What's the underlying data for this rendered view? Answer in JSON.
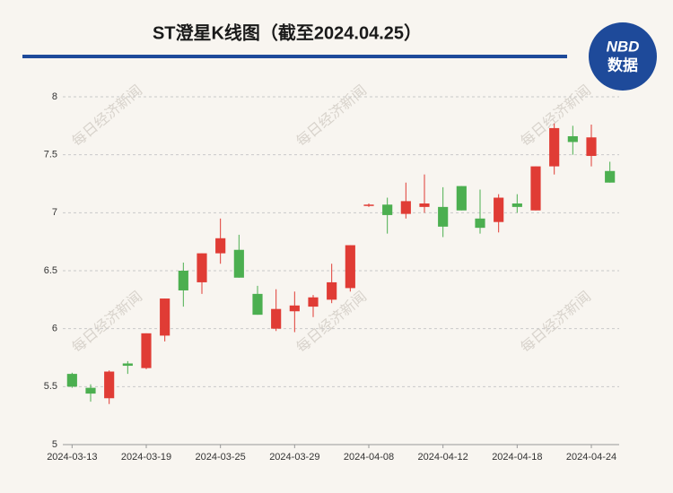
{
  "chart_data": {
    "type": "candlestick",
    "title": "ST澄星K线图（截至2024.04.25）",
    "logo": {
      "top": "NBD",
      "bottom": "数据"
    },
    "watermark": "每日经济新闻",
    "categories": [
      "2024-03-13",
      null,
      null,
      null,
      "2024-03-19",
      null,
      null,
      null,
      "2024-03-25",
      null,
      null,
      null,
      "2024-03-29",
      null,
      null,
      null,
      "2024-04-08",
      null,
      null,
      null,
      "2024-04-12",
      null,
      null,
      null,
      "2024-04-18",
      null,
      null,
      null,
      "2024-04-24",
      null
    ],
    "series": [
      {
        "up_color": "#e03c35",
        "down_color": "#4caf50",
        "open": [
          5.61,
          5.49,
          5.4,
          5.7,
          5.66,
          5.94,
          6.5,
          6.4,
          6.65,
          6.68,
          6.3,
          6.0,
          6.15,
          6.19,
          6.25,
          6.35,
          7.06,
          7.07,
          6.99,
          7.05,
          7.05,
          7.23,
          6.95,
          6.92,
          7.08,
          7.02,
          7.4,
          7.66,
          7.49,
          7.36
        ],
        "high": [
          5.62,
          5.52,
          5.64,
          5.72,
          5.96,
          6.26,
          6.57,
          6.65,
          6.95,
          6.81,
          6.37,
          6.34,
          6.32,
          6.29,
          6.56,
          6.72,
          7.08,
          7.13,
          7.26,
          7.33,
          7.22,
          7.23,
          7.2,
          7.16,
          7.16,
          7.4,
          7.77,
          7.75,
          7.76,
          7.44
        ],
        "low": [
          5.49,
          5.37,
          5.35,
          5.61,
          5.65,
          5.89,
          6.19,
          6.3,
          6.56,
          6.44,
          6.12,
          5.98,
          5.97,
          6.1,
          6.22,
          6.32,
          7.05,
          6.82,
          6.95,
          7.0,
          6.79,
          7.02,
          6.82,
          6.83,
          7.0,
          7.02,
          7.33,
          7.5,
          7.4,
          7.26
        ],
        "close": [
          5.5,
          5.44,
          5.63,
          5.68,
          5.96,
          6.26,
          6.33,
          6.65,
          6.78,
          6.44,
          6.12,
          6.17,
          6.2,
          6.27,
          6.4,
          6.72,
          7.07,
          6.98,
          7.1,
          7.08,
          6.88,
          7.02,
          6.87,
          7.13,
          7.05,
          7.4,
          7.73,
          7.61,
          7.65,
          7.26
        ]
      }
    ],
    "ylim": [
      5,
      8
    ],
    "yticks": [
      5,
      5.5,
      6,
      6.5,
      7,
      7.5,
      8
    ],
    "grid": true
  }
}
